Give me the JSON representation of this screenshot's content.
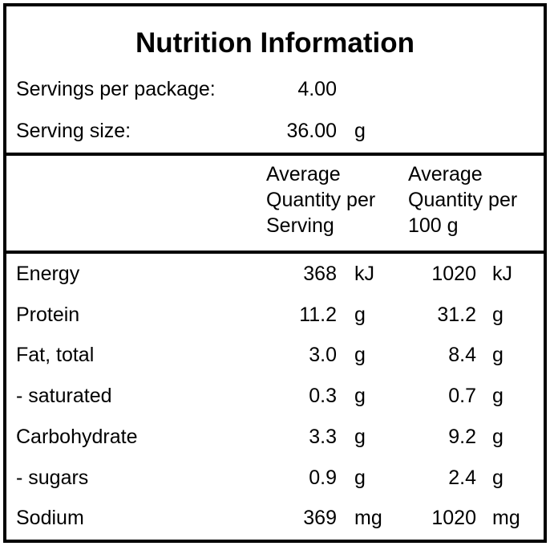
{
  "header": {
    "title": "Nutrition Information",
    "servings_per_package": {
      "label": "Servings per package:",
      "value": "4.00"
    },
    "serving_size": {
      "label": "Serving size:",
      "value": "36.00",
      "unit": "g"
    }
  },
  "table": {
    "columns": [
      [
        "Average",
        "Quantity per",
        "Serving"
      ],
      [
        "Average",
        "Quantity per",
        "100 g"
      ]
    ],
    "rows": [
      [
        "Energy",
        "368",
        "kJ",
        "1020",
        "kJ"
      ],
      [
        "Protein",
        "11.2",
        "g",
        "31.2",
        "g"
      ],
      [
        "Fat, total",
        "3.0",
        "g",
        "8.4",
        "g"
      ],
      [
        "- saturated",
        "0.3",
        "g",
        "0.7",
        "g"
      ],
      [
        "Carbohydrate",
        "3.3",
        "g",
        "9.2",
        "g"
      ],
      [
        "- sugars",
        "0.9",
        "g",
        "2.4",
        "g"
      ],
      [
        "Sodium",
        "369",
        "mg",
        "1020",
        "mg"
      ]
    ]
  }
}
